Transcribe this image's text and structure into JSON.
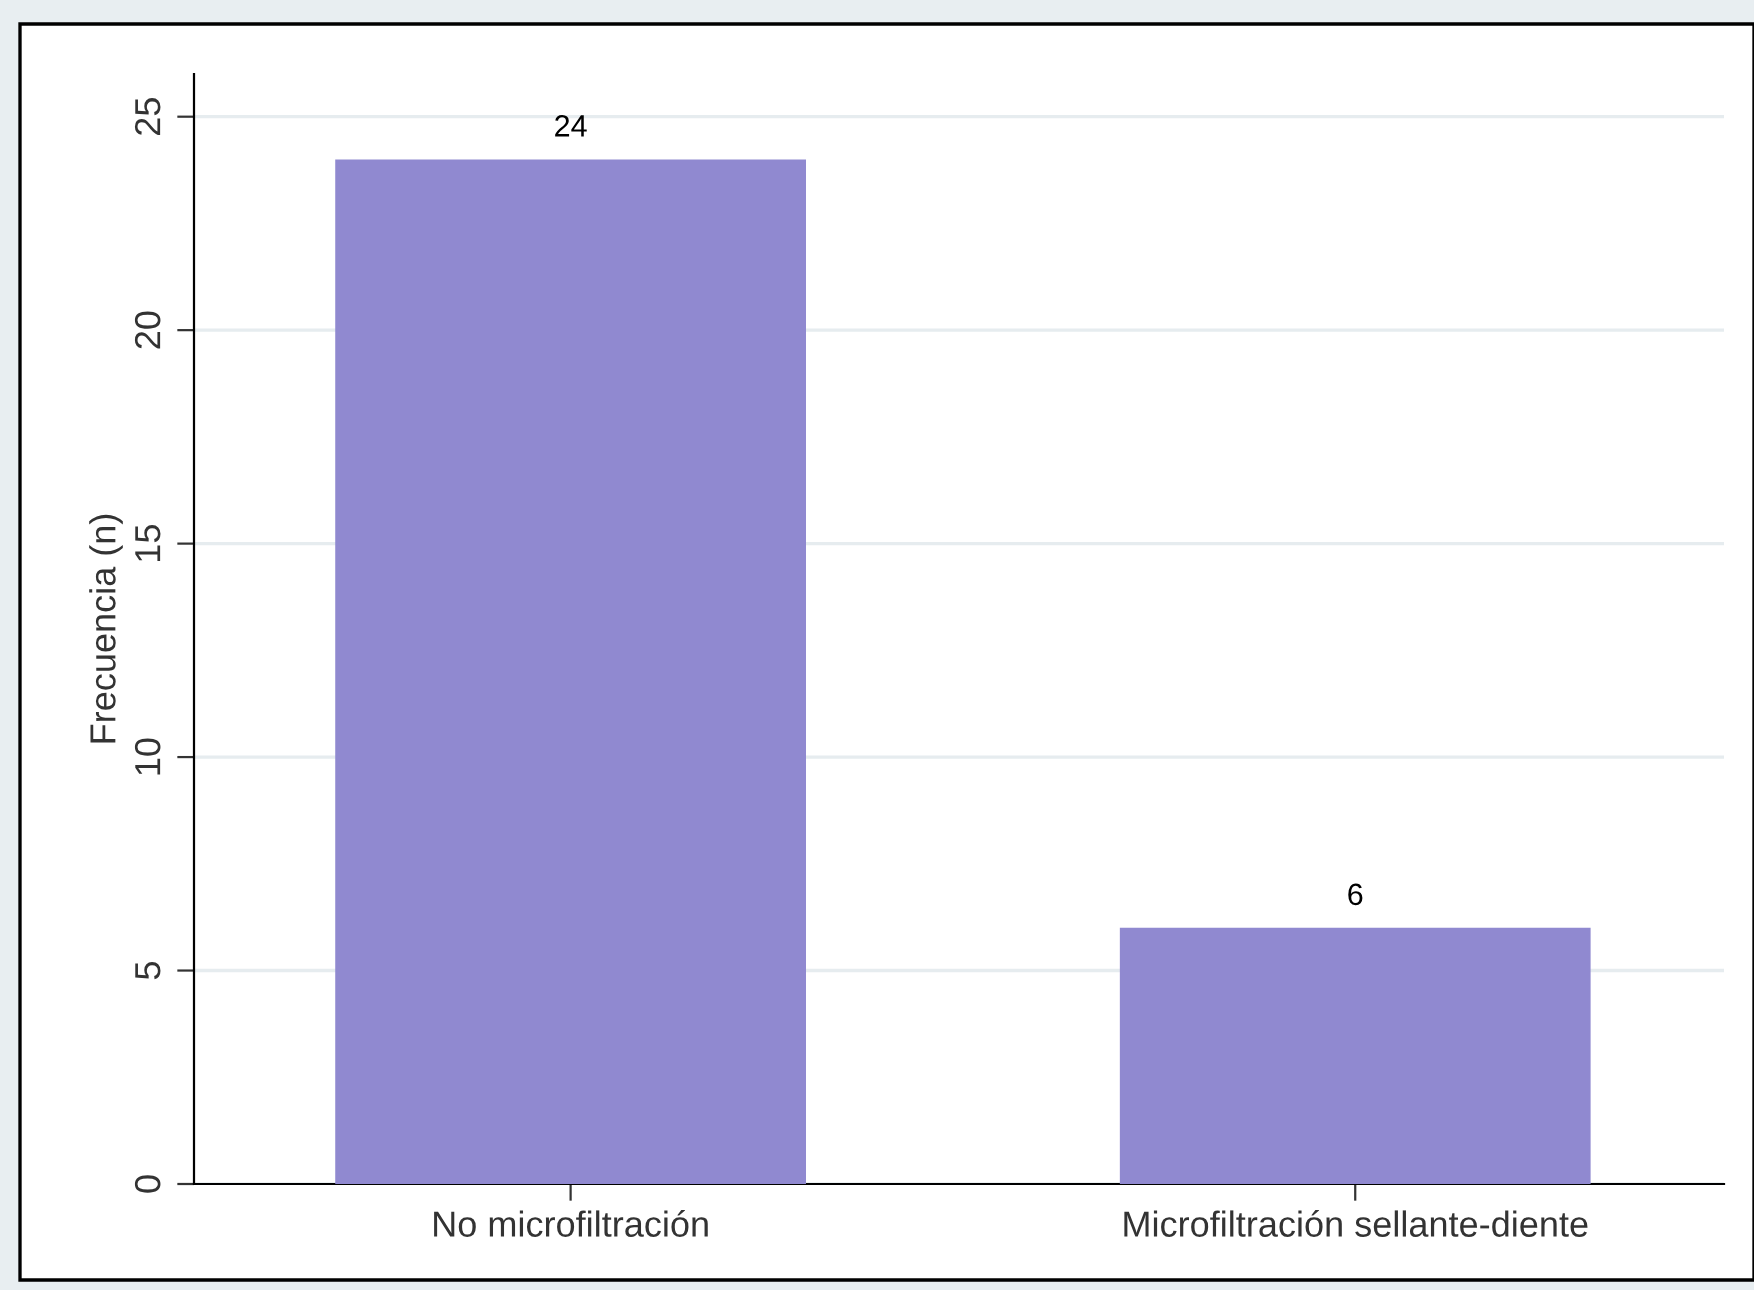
{
  "chart_data": {
    "type": "bar",
    "ylabel": "Frecuencia (n)",
    "categories": [
      "No microfiltración",
      "Microfiltración sellante-diente"
    ],
    "values": [
      24,
      6
    ],
    "color": "#9089d0",
    "ylim": [
      0,
      26
    ],
    "yticks": [
      0,
      5,
      10,
      15,
      20,
      25
    ],
    "grid": "y",
    "data_labels": true
  }
}
